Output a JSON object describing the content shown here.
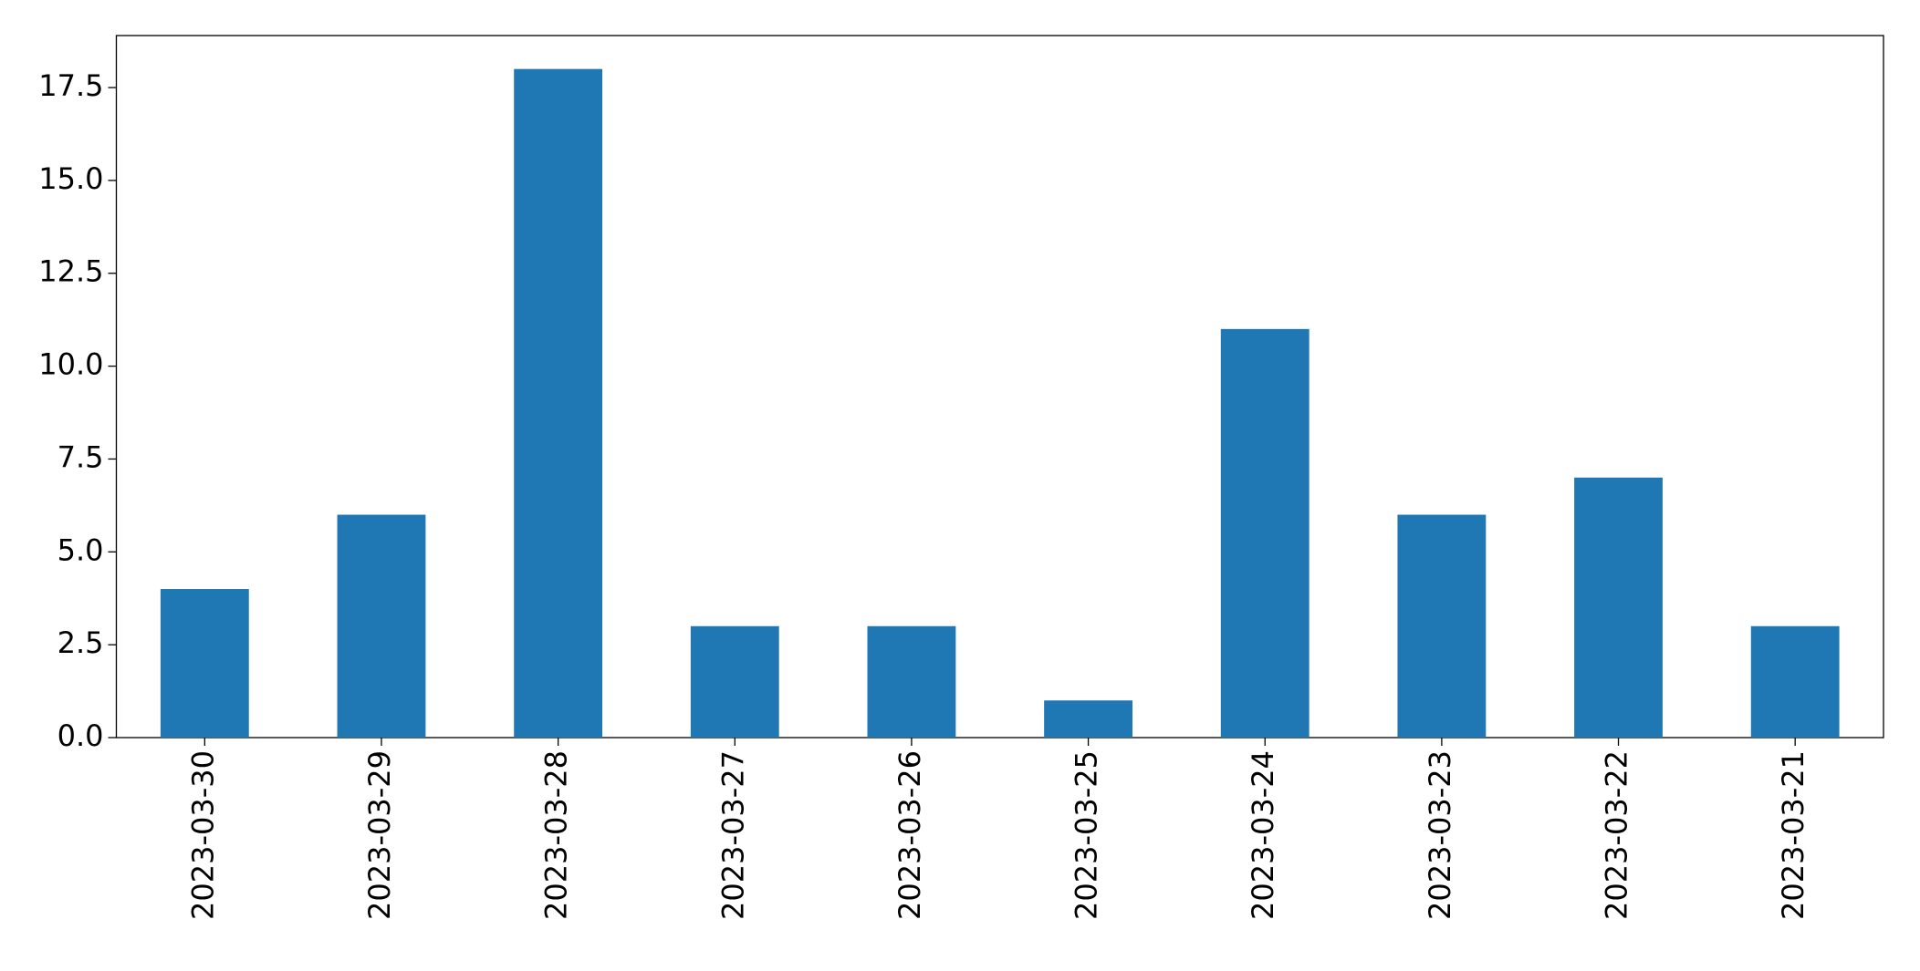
{
  "chart_data": {
    "type": "bar",
    "categories": [
      "2023-03-30",
      "2023-03-29",
      "2023-03-28",
      "2023-03-27",
      "2023-03-26",
      "2023-03-25",
      "2023-03-24",
      "2023-03-23",
      "2023-03-22",
      "2023-03-21"
    ],
    "values": [
      4,
      6,
      18,
      3,
      3,
      1,
      11,
      6,
      7,
      3
    ],
    "color": "#1f77b4",
    "ylim": [
      0,
      18.9
    ],
    "yticks": [
      {
        "value": 0,
        "label": "0.0"
      },
      2.5,
      {
        "value": 5,
        "label": "5.0"
      },
      7.5,
      {
        "value": 10,
        "label": "10.0"
      },
      12.5,
      {
        "value": 15,
        "label": "15.0"
      },
      17.5
    ],
    "grid": false
  }
}
